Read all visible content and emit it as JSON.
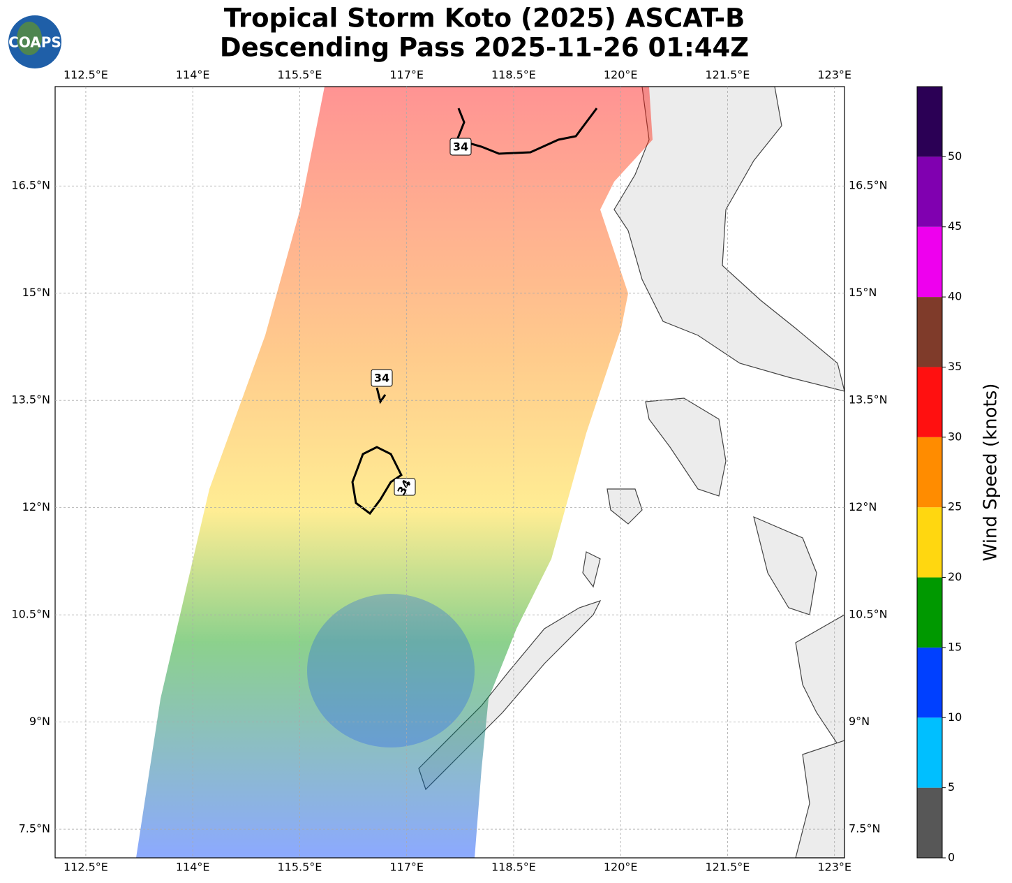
{
  "header": {
    "logo": "COAPS",
    "title_line1": "Tropical Storm Koto (2025) ASCAT-B",
    "title_line2": "Descending Pass 2025-11-26 01:44Z"
  },
  "map": {
    "xlim": [
      112.07,
      123.14
    ],
    "ylim": [
      7.1,
      17.89
    ],
    "xticks": [
      {
        "value": 112.5,
        "label": "112.5°E"
      },
      {
        "value": 114,
        "label": "114°E"
      },
      {
        "value": 115.5,
        "label": "115.5°E"
      },
      {
        "value": 117,
        "label": "117°E"
      },
      {
        "value": 118.5,
        "label": "118.5°E"
      },
      {
        "value": 120,
        "label": "120°E"
      },
      {
        "value": 121.5,
        "label": "121.5°E"
      },
      {
        "value": 123,
        "label": "123°E"
      }
    ],
    "yticks": [
      {
        "value": 7.5,
        "label": "7.5°N"
      },
      {
        "value": 9,
        "label": "9°N"
      },
      {
        "value": 10.5,
        "label": "10.5°N"
      },
      {
        "value": 12,
        "label": "12°N"
      },
      {
        "value": 13.5,
        "label": "13.5°N"
      },
      {
        "value": 15,
        "label": "15°N"
      },
      {
        "value": 16.5,
        "label": "16.5°N"
      }
    ],
    "grid": true,
    "contour_labels": [
      "34",
      "34",
      "34"
    ]
  },
  "colorbar": {
    "label": "Wind Speed (knots)",
    "lim": [
      0,
      55
    ],
    "bins": [
      0,
      5,
      10,
      15,
      20,
      25,
      30,
      35,
      40,
      45,
      50,
      55
    ],
    "colors": [
      "#575757",
      "#00bfff",
      "#0040ff",
      "#009900",
      "#ffd710",
      "#ff8c00",
      "#ff1010",
      "#7f3b2a",
      "#ee00ee",
      "#8000b0",
      "#2b0055"
    ],
    "ticks": [
      0,
      5,
      10,
      15,
      20,
      25,
      30,
      35,
      40,
      45,
      50
    ]
  }
}
